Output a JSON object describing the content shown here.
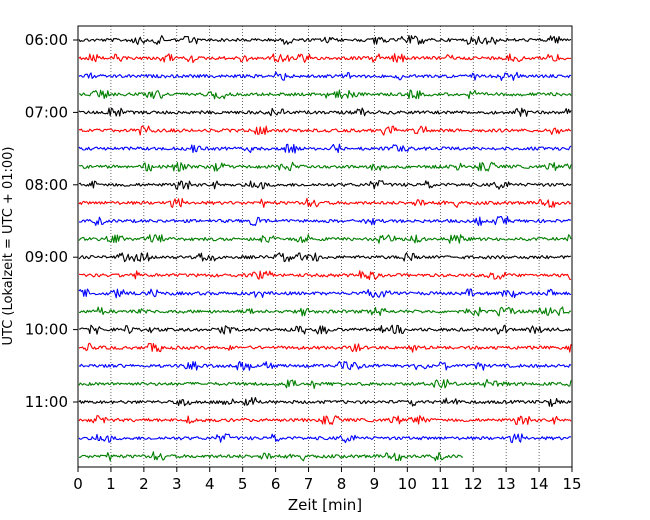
{
  "chart_data": {
    "type": "line",
    "title": "",
    "xlabel": "Zeit  [min]",
    "ylabel": "UTC (Lokalzeit = UTC + 01:00)",
    "xlim": [
      0,
      15
    ],
    "x_ticks": [
      "0",
      "1",
      "2",
      "3",
      "4",
      "5",
      "6",
      "7",
      "8",
      "9",
      "10",
      "11",
      "12",
      "13",
      "14",
      "15"
    ],
    "y_ticks": [
      "06:00",
      "07:00",
      "08:00",
      "09:00",
      "10:00",
      "11:00"
    ],
    "grid": "vertical dotted",
    "legend": "none",
    "series_colors": [
      "#000000",
      "#ff0000",
      "#0000ff",
      "#007f00"
    ],
    "series": [
      {
        "start": "06:00",
        "end_min": 15
      },
      {
        "start": "06:15",
        "end_min": 15
      },
      {
        "start": "06:30",
        "end_min": 15
      },
      {
        "start": "06:45",
        "end_min": 15
      },
      {
        "start": "07:00",
        "end_min": 15
      },
      {
        "start": "07:15",
        "end_min": 15
      },
      {
        "start": "07:30",
        "end_min": 15
      },
      {
        "start": "07:45",
        "end_min": 15
      },
      {
        "start": "08:00",
        "end_min": 15
      },
      {
        "start": "08:15",
        "end_min": 15
      },
      {
        "start": "08:30",
        "end_min": 15
      },
      {
        "start": "08:45",
        "end_min": 15
      },
      {
        "start": "09:00",
        "end_min": 15
      },
      {
        "start": "09:15",
        "end_min": 15
      },
      {
        "start": "09:30",
        "end_min": 15
      },
      {
        "start": "09:45",
        "end_min": 15
      },
      {
        "start": "10:00",
        "end_min": 15
      },
      {
        "start": "10:15",
        "end_min": 15
      },
      {
        "start": "10:30",
        "end_min": 15
      },
      {
        "start": "10:45",
        "end_min": 15
      },
      {
        "start": "11:00",
        "end_min": 15
      },
      {
        "start": "11:15",
        "end_min": 15
      },
      {
        "start": "11:30",
        "end_min": 15
      },
      {
        "start": "11:45",
        "end_min": 11.7
      }
    ]
  }
}
